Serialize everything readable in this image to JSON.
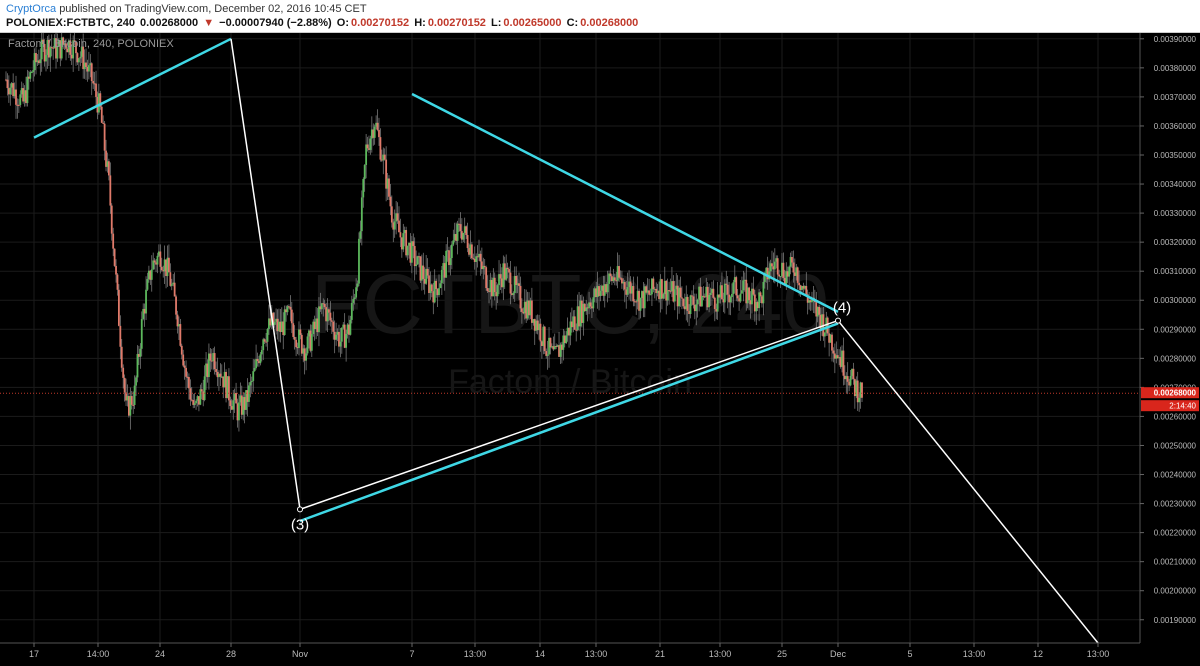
{
  "header": {
    "author": "CryptOrca",
    "published": "published on TradingView.com, December 02, 2016 10:45 CET",
    "symbol": "POLONIEX:FCTBTC, 240",
    "last": "0.00268000",
    "change_arrow": "▼",
    "change": "−0.00007940 (−2.88%)",
    "open_label": "O:",
    "open": "0.00270152",
    "high_label": "H:",
    "high": "0.00270152",
    "low_label": "L:",
    "low": "0.00265000",
    "close_label": "C:",
    "close": "0.00268000"
  },
  "overlay": {
    "title": "Factom / Bitcoin, 240, POLONIEX",
    "watermark_symbol": "FCTBTC, 240",
    "watermark_name": "Factom / Bitcoin"
  },
  "colors": {
    "background": "#000000",
    "up": "#5cb85c",
    "down": "#e07a6a",
    "trend": "#3fd8e6",
    "wave": "#ffffff",
    "price_line": "#c0392b",
    "label_bg": "#d9261c"
  },
  "chart_data": {
    "type": "candlestick",
    "ylim": [
      0.00182,
      0.00392
    ],
    "y_ticks": [
      "0.00390000",
      "0.00380000",
      "0.00370000",
      "0.00360000",
      "0.00350000",
      "0.00340000",
      "0.00330000",
      "0.00320000",
      "0.00310000",
      "0.00300000",
      "0.00290000",
      "0.00280000",
      "0.00270000",
      "0.00260000",
      "0.00250000",
      "0.00240000",
      "0.00230000",
      "0.00220000",
      "0.00210000",
      "0.00200000",
      "0.00190000"
    ],
    "x_ticks": [
      "17",
      "14:00",
      "24",
      "28",
      "Nov",
      "7",
      "13:00",
      "14",
      "13:00",
      "21",
      "13:00",
      "25",
      "Dec",
      "5",
      "13:00",
      "12",
      "13:00"
    ],
    "current_price_label": "0.00268000",
    "countdown_label": "2:14:40",
    "wave_labels": [
      "(3)",
      "(4)"
    ],
    "price_path": [
      0.00376,
      0.00372,
      0.00368,
      0.00379,
      0.00385,
      0.00388,
      0.00386,
      0.00389,
      0.00387,
      0.00383,
      0.00376,
      0.00365,
      0.0034,
      0.003,
      0.00262,
      0.00268,
      0.00296,
      0.00312,
      0.00316,
      0.00309,
      0.00295,
      0.00274,
      0.00262,
      0.0027,
      0.00282,
      0.00276,
      0.00268,
      0.00262,
      0.00265,
      0.00275,
      0.00288,
      0.00292,
      0.0029,
      0.00295,
      0.00287,
      0.00283,
      0.0029,
      0.00298,
      0.00292,
      0.00286,
      0.0029,
      0.0031,
      0.00352,
      0.00362,
      0.00348,
      0.0033,
      0.00322,
      0.00318,
      0.00312,
      0.00307,
      0.00303,
      0.0031,
      0.00318,
      0.00325,
      0.0032,
      0.00314,
      0.00308,
      0.00303,
      0.0031,
      0.00306,
      0.003,
      0.00297,
      0.00292,
      0.00284,
      0.0028,
      0.00286,
      0.00292,
      0.00296,
      0.003,
      0.00302,
      0.00306,
      0.00308,
      0.00306,
      0.00304,
      0.003,
      0.00302,
      0.00305,
      0.00304,
      0.00302,
      0.003,
      0.00299,
      0.00301,
      0.00302,
      0.003,
      0.00302,
      0.00304,
      0.00303,
      0.00301,
      0.003,
      0.00311,
      0.00313,
      0.00309,
      0.00312,
      0.00304,
      0.00298,
      0.00294,
      0.00288,
      0.00282,
      0.00276,
      0.0027,
      0.00268
    ],
    "trend_lines": [
      {
        "name": "upper-left-trend",
        "x": [
          "17",
          "28"
        ],
        "y": [
          0.00356,
          0.0039
        ]
      },
      {
        "name": "descending-resistance",
        "x": [
          "7",
          "Dec"
        ],
        "y": [
          0.00371,
          0.00296
        ]
      },
      {
        "name": "ascending-support",
        "x": [
          "Nov",
          "Dec"
        ],
        "y": [
          0.00224,
          0.00292
        ]
      }
    ],
    "wave_path": [
      {
        "label": "",
        "x": "28",
        "y": 0.0039
      },
      {
        "label": "(3)",
        "x": "Nov",
        "y": 0.00228
      },
      {
        "label": "(4)",
        "x": "Dec",
        "y": 0.00293
      },
      {
        "label": "",
        "x": "13:00",
        "y": 0.00182
      }
    ]
  }
}
